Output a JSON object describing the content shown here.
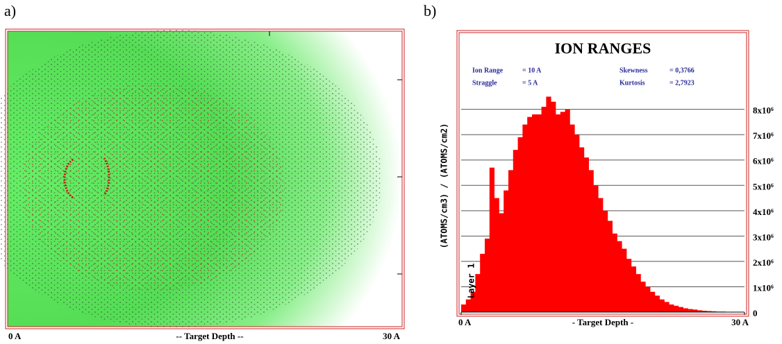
{
  "chart_data": [
    {
      "type": "trajectory",
      "panel": "a)",
      "x_label": "-- Target Depth --",
      "xlim": [
        0,
        30
      ],
      "xticks": [
        {
          "value": 0,
          "label": "0 A"
        },
        {
          "value": 30,
          "label": "30 A"
        }
      ]
    },
    {
      "type": "histogram",
      "panel": "b)",
      "title": "ION RANGES",
      "stats": [
        {
          "label": "Ion Range",
          "value": "= 10 A"
        },
        {
          "label": "Straggle",
          "value": "= 5 A"
        },
        {
          "label": "Skewness",
          "value": "= 0,3766"
        },
        {
          "label": "Kurtosis",
          "value": "= 2,7923"
        }
      ],
      "y_label": "(ATOMS/cm3) / (ATOMS/cm2)",
      "x_label": "- Target Depth -",
      "annotation": "Layer 1",
      "color": "#ff0000",
      "grid": true,
      "bins": [
        0,
        0.5,
        1,
        1.5,
        2,
        2.5,
        3,
        3.5,
        4,
        4.5,
        5,
        5.5,
        6,
        6.5,
        7,
        7.5,
        8,
        8.5,
        9,
        9.5,
        10,
        10.5,
        11,
        11.5,
        12,
        12.5,
        13,
        13.5,
        14,
        14.5,
        15,
        15.5,
        16,
        16.5,
        17,
        17.5,
        18,
        18.5,
        19,
        19.5,
        20,
        20.5,
        21,
        21.5,
        22,
        22.5,
        23,
        23.5,
        24,
        24.5,
        25,
        25.5,
        26,
        26.5,
        27,
        27.5,
        28,
        28.5,
        29,
        29.5,
        30
      ],
      "values": [
        300000,
        500000,
        800000,
        1500000,
        2300000,
        2900000,
        5700000,
        4500000,
        3900000,
        4800000,
        5600000,
        6400000,
        6900000,
        7400000,
        7700000,
        7800000,
        7800000,
        8100000,
        8500000,
        8300000,
        7800000,
        7900000,
        8000000,
        7400000,
        7000000,
        6500000,
        6100000,
        5600000,
        5000000,
        4500000,
        4000000,
        3600000,
        3100000,
        2800000,
        2500000,
        2100000,
        1800000,
        1500000,
        1200000,
        1000000,
        800000,
        650000,
        500000,
        400000,
        300000,
        250000,
        200000,
        150000,
        120000,
        100000,
        70000,
        50000,
        40000,
        30000,
        20000,
        20000,
        10000,
        10000,
        0,
        0
      ],
      "xlim": [
        0,
        30
      ],
      "xticks": [
        {
          "value": 0,
          "label": "0 A"
        },
        {
          "value": 30,
          "label": "30 A"
        }
      ],
      "ylim": [
        0,
        11000000
      ],
      "yticks": [
        0,
        {
          "value": 1000000,
          "label": "1x10⁶"
        },
        {
          "value": 2000000,
          "label": "2x10⁶"
        },
        {
          "value": 3000000,
          "label": "3x10⁶"
        },
        {
          "value": 4000000,
          "label": "4x10⁶"
        },
        {
          "value": 5000000,
          "label": "5x10⁶"
        },
        {
          "value": 6000000,
          "label": "6x10⁶"
        },
        {
          "value": 7000000,
          "label": "7x10⁶"
        },
        {
          "value": 8000000,
          "label": "8x10⁶"
        }
      ]
    }
  ]
}
